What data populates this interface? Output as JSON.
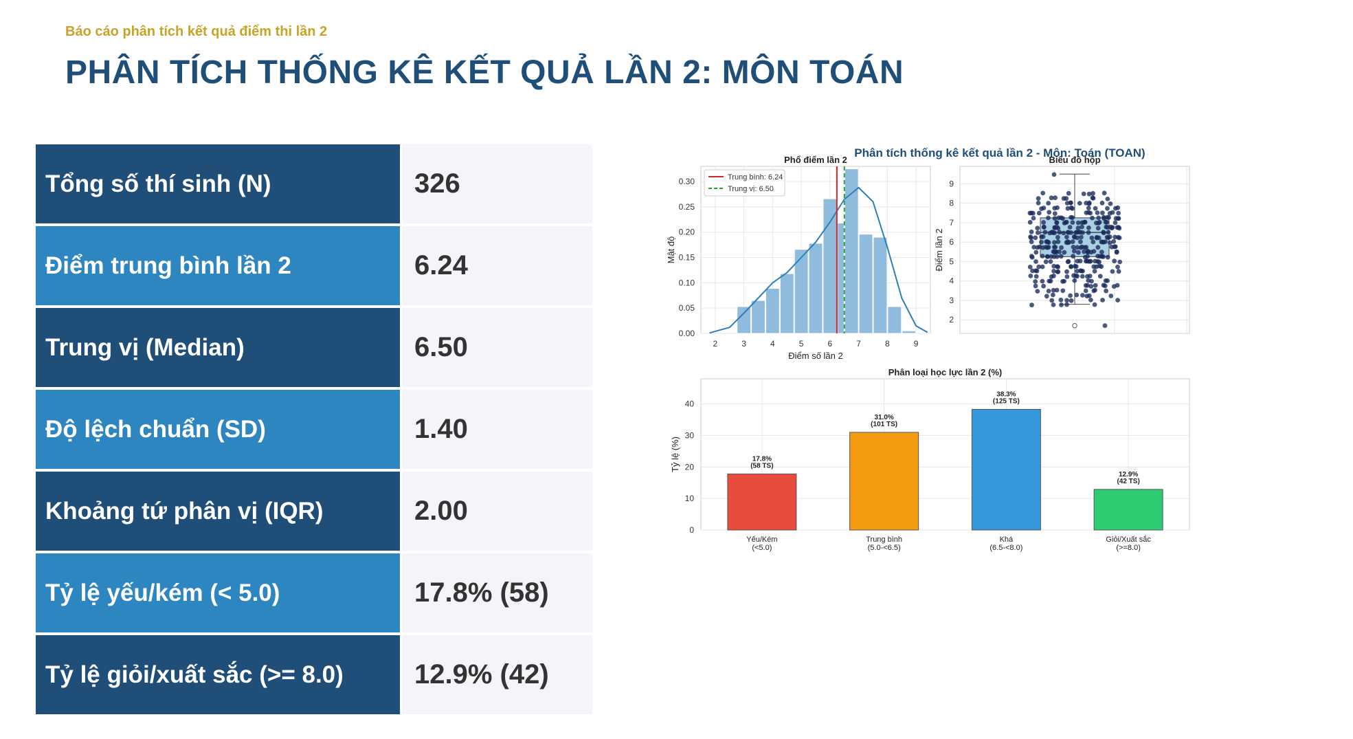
{
  "header": {
    "subtitle": "Báo cáo phân tích kết quả điểm thi lần 2",
    "title": "PHÂN TÍCH THỐNG KÊ KẾT QUẢ LẦN 2: MÔN TOÁN"
  },
  "stats": [
    {
      "label": "Tổng số thí sinh (N)",
      "value": "326"
    },
    {
      "label": "Điểm trung bình lần 2",
      "value": "6.24"
    },
    {
      "label": "Trung vị (Median)",
      "value": "6.50"
    },
    {
      "label": "Độ lệch chuẩn (SD)",
      "value": "1.40"
    },
    {
      "label": "Khoảng tứ phân vị (IQR)",
      "value": "2.00"
    },
    {
      "label": "Tỷ lệ yếu/kém (< 5.0)",
      "value": "17.8% (58)"
    },
    {
      "label": "Tỷ lệ giỏi/xuất sắc (>= 8.0)",
      "value": "12.9% (42)"
    }
  ],
  "figure_title": "Phân tích thống kê kết quả lần 2 - Môn: Toán (TOAN)",
  "colors": {
    "dark_row": "#1f4e79",
    "light_row": "#2e86c1",
    "accent_gold": "#c9a227",
    "hist_bar": "#8fbcdc",
    "kde_line": "#2e7fb8",
    "mean_line": "#d62728",
    "median_line": "#2ca02c"
  },
  "chart_data": [
    {
      "type": "bar",
      "title": "Phổ điểm lần 2",
      "xlabel": "Điểm số lần 2",
      "ylabel": "Mật độ",
      "xlim": [
        1.5,
        9.5
      ],
      "ylim": [
        0,
        0.33
      ],
      "xticks": [
        "2",
        "3",
        "4",
        "5",
        "6",
        "7",
        "8",
        "9"
      ],
      "yticks": [
        "0.00",
        "0.05",
        "0.10",
        "0.15",
        "0.20",
        "0.25",
        "0.30"
      ],
      "bin_edges": [
        2.75,
        3.25,
        3.75,
        4.25,
        4.75,
        5.25,
        5.75,
        6.25,
        6.5,
        7.0,
        7.5,
        8.0,
        8.5,
        9.0,
        9.5
      ],
      "values": [
        0.053,
        0.065,
        0.089,
        0.118,
        0.166,
        0.178,
        0.266,
        0.218,
        0.325,
        0.196,
        0.19,
        0.053,
        0.005,
        0.0
      ],
      "kde": {
        "x": [
          1.8,
          2.5,
          3.0,
          3.5,
          4.0,
          4.5,
          5.0,
          5.5,
          6.0,
          6.5,
          7.0,
          7.5,
          8.0,
          8.5,
          9.0,
          9.4
        ],
        "y": [
          0.001,
          0.012,
          0.04,
          0.07,
          0.1,
          0.12,
          0.15,
          0.18,
          0.22,
          0.265,
          0.288,
          0.26,
          0.17,
          0.07,
          0.015,
          0.002
        ]
      },
      "mean_line": 6.24,
      "median_line": 6.5,
      "legend": [
        "Trung bình: 6.24",
        "Trung vị: 6.50"
      ],
      "legend_position": "top-left",
      "grid": true
    },
    {
      "type": "scatter",
      "title": "Biểu đồ hộp",
      "ylabel": "Điểm lần 2",
      "ylim": [
        1.3,
        9.9
      ],
      "yticks": [
        "2",
        "3",
        "4",
        "5",
        "6",
        "7",
        "8",
        "9"
      ],
      "box": {
        "whisker_low": 2.8,
        "q1": 5.25,
        "median": 6.5,
        "q3": 7.25,
        "whisker_high": 9.5
      },
      "outliers": [
        1.7
      ],
      "grid": true
    },
    {
      "type": "bar",
      "title": "Phân loại học lực lần 2 (%)",
      "ylabel": "Tỷ lệ (%)",
      "ylim": [
        0,
        48
      ],
      "yticks": [
        "0",
        "10",
        "20",
        "30",
        "40"
      ],
      "categories": [
        "Yếu/Kém\n(<5.0)",
        "Trung bình\n(5.0-<6.5)",
        "Khá\n(6.5-<8.0)",
        "Giỏi/Xuất sắc\n(>=8.0)"
      ],
      "values": [
        17.8,
        31.0,
        38.3,
        12.9
      ],
      "data_labels": [
        "17.8%\n(58 TS)",
        "31.0%\n(101 TS)",
        "38.3%\n(125 TS)",
        "12.9%\n(42 TS)"
      ],
      "colors": [
        "#e74c3c",
        "#f39c12",
        "#3498db",
        "#2ecc71"
      ],
      "grid": true
    }
  ]
}
